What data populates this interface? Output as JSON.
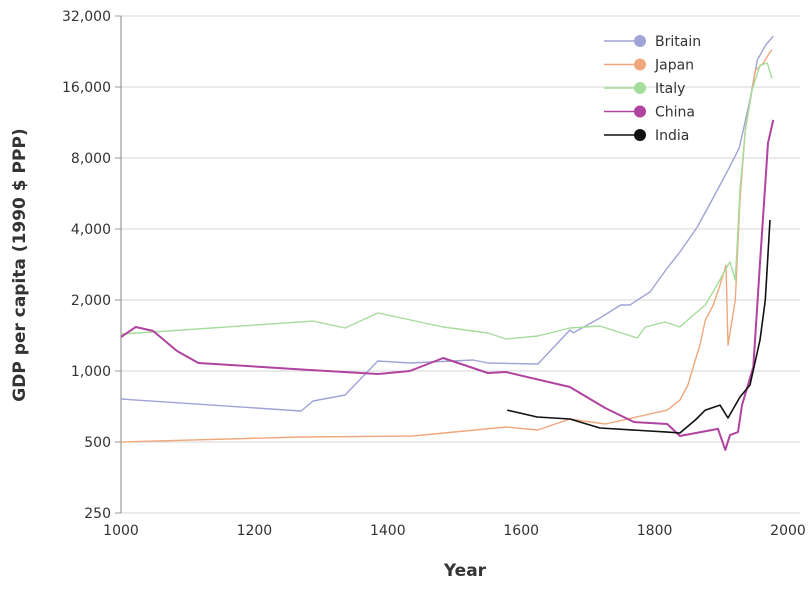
{
  "chart_data": {
    "type": "line",
    "xlabel": "Year",
    "ylabel": "GDP per capita (1990 $ PPP)",
    "xlim": [
      1000,
      2000
    ],
    "ylim": [
      250,
      32000
    ],
    "yscale": "log2",
    "grid": "horizontal",
    "legend": "top-right",
    "xticks": [
      "1000",
      "1200",
      "1400",
      "1600",
      "1800",
      "2000"
    ],
    "yticks": [
      "250",
      "500",
      "1,000",
      "2,000",
      "4,000",
      "8,000",
      "16,000",
      "32,000"
    ],
    "series": [
      {
        "name": "Britain",
        "color": "#9fa3d6",
        "points": [
          [
            1000,
            761
          ],
          [
            1270,
            677
          ],
          [
            1288,
            746
          ],
          [
            1336,
            791
          ],
          [
            1385,
            1103
          ],
          [
            1433,
            1081
          ],
          [
            1528,
            1113
          ],
          [
            1550,
            1081
          ],
          [
            1625,
            1071
          ],
          [
            1673,
            1492
          ],
          [
            1678,
            1450
          ],
          [
            1718,
            1677
          ],
          [
            1749,
            1905
          ],
          [
            1763,
            1905
          ],
          [
            1793,
            2163
          ],
          [
            1819,
            2733
          ],
          [
            1838,
            3196
          ],
          [
            1864,
            4080
          ],
          [
            1886,
            5310
          ],
          [
            1910,
            7110
          ],
          [
            1927,
            8830
          ],
          [
            1943,
            14120
          ],
          [
            1954,
            20800
          ],
          [
            1966,
            24000
          ],
          [
            1978,
            26300
          ]
        ]
      },
      {
        "name": "Japan",
        "color": "#f0a77c",
        "points": [
          [
            1000,
            500
          ],
          [
            1268,
            525
          ],
          [
            1438,
            530
          ],
          [
            1577,
            579
          ],
          [
            1625,
            562
          ],
          [
            1673,
            626
          ],
          [
            1726,
            596
          ],
          [
            1819,
            683
          ],
          [
            1838,
            753
          ],
          [
            1850,
            872
          ],
          [
            1861,
            1113
          ],
          [
            1868,
            1289
          ],
          [
            1876,
            1645
          ],
          [
            1888,
            1905
          ],
          [
            1898,
            2314
          ],
          [
            1907,
            2810
          ],
          [
            1910,
            1289
          ],
          [
            1921,
            1998
          ],
          [
            1928,
            5310
          ],
          [
            1936,
            10500
          ],
          [
            1951,
            18800
          ],
          [
            1963,
            20200
          ],
          [
            1973,
            22500
          ],
          [
            1976,
            23000
          ]
        ]
      },
      {
        "name": "Italy",
        "color": "#a6dc9c",
        "points": [
          [
            1000,
            1435
          ],
          [
            1048,
            1463
          ],
          [
            1288,
            1628
          ],
          [
            1336,
            1521
          ],
          [
            1385,
            1761
          ],
          [
            1483,
            1536
          ],
          [
            1550,
            1449
          ],
          [
            1577,
            1367
          ],
          [
            1625,
            1407
          ],
          [
            1673,
            1521
          ],
          [
            1718,
            1552
          ],
          [
            1774,
            1380
          ],
          [
            1786,
            1536
          ],
          [
            1816,
            1613
          ],
          [
            1838,
            1536
          ],
          [
            1853,
            1677
          ],
          [
            1876,
            1905
          ],
          [
            1891,
            2247
          ],
          [
            1906,
            2680
          ],
          [
            1913,
            2900
          ],
          [
            1921,
            2430
          ],
          [
            1928,
            5850
          ],
          [
            1936,
            10500
          ],
          [
            1946,
            15500
          ],
          [
            1958,
            19800
          ],
          [
            1969,
            20200
          ],
          [
            1976,
            17400
          ]
        ]
      },
      {
        "name": "China",
        "color": "#b0439f",
        "points": [
          [
            1000,
            1393
          ],
          [
            1022,
            1536
          ],
          [
            1048,
            1479
          ],
          [
            1084,
            1216
          ],
          [
            1116,
            1081
          ],
          [
            1283,
            1010
          ],
          [
            1385,
            971
          ],
          [
            1433,
            1000
          ],
          [
            1483,
            1135
          ],
          [
            1550,
            981
          ],
          [
            1577,
            990
          ],
          [
            1673,
            855
          ],
          [
            1726,
            697
          ],
          [
            1769,
            608
          ],
          [
            1819,
            596
          ],
          [
            1838,
            530
          ],
          [
            1895,
            568
          ],
          [
            1906,
            463
          ],
          [
            1913,
            535
          ],
          [
            1925,
            551
          ],
          [
            1931,
            717
          ],
          [
            1948,
            1040
          ],
          [
            1958,
            2870
          ],
          [
            1970,
            9260
          ],
          [
            1978,
            11600
          ]
        ]
      },
      {
        "name": "India",
        "color": "#111111",
        "points": [
          [
            1579,
            683
          ],
          [
            1624,
            638
          ],
          [
            1673,
            626
          ],
          [
            1718,
            573
          ],
          [
            1819,
            551
          ],
          [
            1838,
            546
          ],
          [
            1861,
            620
          ],
          [
            1876,
            683
          ],
          [
            1898,
            717
          ],
          [
            1910,
            632
          ],
          [
            1928,
            776
          ],
          [
            1943,
            872
          ],
          [
            1958,
            1353
          ],
          [
            1966,
            2000
          ],
          [
            1973,
            4370
          ]
        ]
      }
    ]
  }
}
